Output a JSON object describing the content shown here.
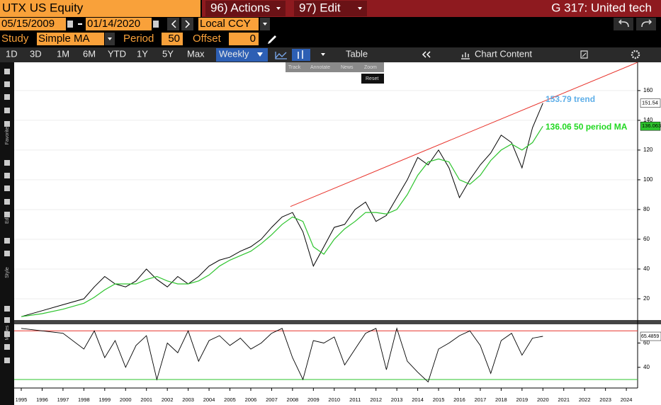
{
  "header": {
    "security": "UTX US Equity",
    "menus": [
      "96) Actions",
      "97) Edit"
    ],
    "title": "G 317: United tech"
  },
  "controls": {
    "start": "05/15/2009",
    "end": "01/14/2020",
    "currency": "Local CCY",
    "study_label": "Study",
    "study": "Simple MA",
    "period_label": "Period",
    "period": 50,
    "offset_label": "Offset",
    "offset": 0
  },
  "toolbar": {
    "ranges": [
      "1D",
      "3D",
      "1M",
      "6M",
      "YTD",
      "1Y",
      "5Y",
      "Max"
    ],
    "frequency": "Weekly",
    "table": "Table",
    "chart_content": "Chart Content"
  },
  "sidebar": [
    "Favorites",
    "Edit",
    "Style",
    "Modes"
  ],
  "popup": [
    "Track",
    "Annotate",
    "News",
    "Zoom",
    "Reset"
  ],
  "chart_data": {
    "type": "line",
    "x": [
      1995,
      1996,
      1997,
      1998,
      1998.5,
      1999,
      1999.5,
      2000,
      2000.5,
      2001,
      2001.5,
      2002,
      2002.5,
      2003,
      2003.5,
      2004,
      2004.5,
      2005,
      2005.5,
      2006,
      2006.5,
      2007,
      2007.5,
      2008,
      2008.5,
      2009,
      2009.5,
      2010,
      2010.5,
      2011,
      2011.5,
      2012,
      2012.5,
      2013,
      2013.5,
      2014,
      2014.5,
      2015,
      2015.5,
      2016,
      2016.5,
      2017,
      2017.5,
      2018,
      2018.5,
      2019,
      2019.5,
      2020
    ],
    "xlim": [
      1994.66,
      2024.54
    ],
    "xticks": [
      1995,
      1996,
      1997,
      1998,
      1999,
      2000,
      2001,
      2002,
      2003,
      2004,
      2005,
      2006,
      2007,
      2008,
      2009,
      2010,
      2011,
      2012,
      2013,
      2014,
      2015,
      2016,
      2017,
      2018,
      2019,
      2020,
      2021,
      2022,
      2023,
      2024
    ],
    "ylim": [
      5.7,
      179
    ],
    "yticks": [
      20,
      40,
      60,
      80,
      100,
      120,
      140,
      160
    ],
    "series": [
      {
        "color": "#000000",
        "values": [
          8,
          12,
          16,
          20,
          28,
          35,
          30,
          28,
          32,
          40,
          33,
          28,
          35,
          30,
          35,
          42,
          46,
          48,
          52,
          55,
          60,
          68,
          75,
          78,
          65,
          42,
          55,
          68,
          70,
          80,
          85,
          72,
          76,
          88,
          100,
          115,
          110,
          120,
          108,
          88,
          100,
          110,
          118,
          130,
          125,
          108,
          135,
          151.54
        ]
      },
      {
        "color": "#2ec42e",
        "values": [
          8,
          10,
          13,
          17,
          21,
          26,
          30,
          30,
          30,
          33,
          35,
          32,
          30,
          30,
          32,
          36,
          42,
          46,
          49,
          52,
          57,
          63,
          70,
          75,
          72,
          55,
          50,
          60,
          67,
          72,
          78,
          78,
          77,
          80,
          90,
          103,
          112,
          114,
          112,
          100,
          97,
          103,
          113,
          120,
          124,
          120,
          125,
          136.063
        ]
      }
    ],
    "trend": {
      "color": "#e8332b",
      "x": [
        2007.9,
        2024.54
      ],
      "values": [
        82,
        179
      ]
    },
    "annotations": [
      {
        "text": "153.79 trend",
        "color": "#5daee8"
      },
      {
        "text": "136.06 50 period MA",
        "color": "#22d822"
      }
    ],
    "lower": {
      "ylim": [
        23,
        75.4
      ],
      "yticks": [
        40,
        60
      ],
      "levels": [
        70,
        30
      ],
      "level_colors": [
        "#e8332b",
        "#2ec42e"
      ],
      "color": "#000000",
      "values": [
        72,
        70,
        68,
        55,
        70,
        48,
        62,
        40,
        58,
        66,
        30,
        60,
        52,
        70,
        45,
        62,
        66,
        58,
        64,
        55,
        60,
        68,
        72,
        48,
        30,
        62,
        60,
        65,
        42,
        55,
        68,
        72,
        38,
        72,
        45,
        36,
        28,
        55,
        60,
        66,
        70,
        58,
        35,
        62,
        68,
        50,
        64,
        65.4859
      ]
    }
  }
}
